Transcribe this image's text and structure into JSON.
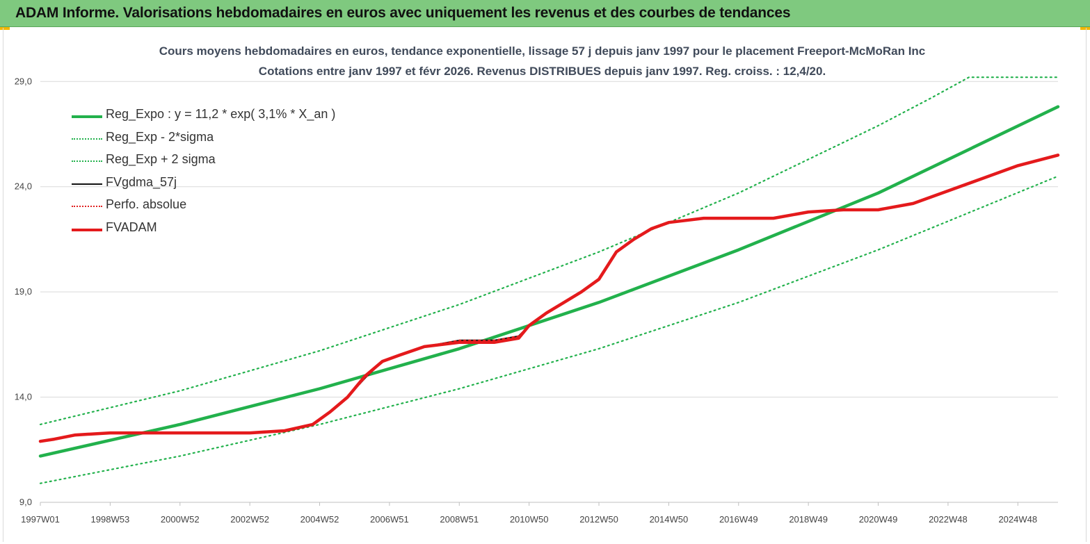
{
  "header": {
    "title": "ADAM Informe. Valorisations hebdomadaires en euros avec uniquement les revenus et des courbes de tendances"
  },
  "chart_data": {
    "type": "line",
    "title": "Cours moyens hebdomadaires en euros, tendance exponentielle, lissage 57 j depuis janv 1997 pour le placement Freeport-McMoRan Inc",
    "subtitle": "Cotations entre janv 1997 et févr 2026. Revenus DISTRIBUES depuis janv 1997. Reg. croiss. : 12,4/20.",
    "x_tick_labels": [
      "1997W01",
      "1998W53",
      "2000W52",
      "2002W52",
      "2004W52",
      "2006W51",
      "2008W51",
      "2010W50",
      "2012W50",
      "2014W50",
      "2016W49",
      "2018W49",
      "2020W49",
      "2022W48",
      "2024W48"
    ],
    "x_tick_years": [
      1997.0,
      1999.0,
      2001.0,
      2003.0,
      2005.0,
      2007.0,
      2009.0,
      2011.0,
      2013.0,
      2015.0,
      2017.0,
      2019.0,
      2021.0,
      2023.0,
      2025.0
    ],
    "x_range": [
      1997.0,
      2026.15
    ],
    "y_ticks": [
      "9,0",
      "14,0",
      "19,0",
      "24,0",
      "29,0"
    ],
    "y_tick_values": [
      9.0,
      14.0,
      19.0,
      24.0,
      29.0
    ],
    "ylim": [
      9.0,
      30.0
    ],
    "grid": true,
    "legend_position": "top-left",
    "series": [
      {
        "name": "Reg_Expo : y = 11,2 * exp( 3,1% *  X_an )",
        "color": "#22b14c",
        "style": "solid-thick",
        "x": [
          1997.0,
          2001.0,
          2005.0,
          2009.0,
          2013.0,
          2017.0,
          2021.0,
          2026.15
        ],
        "y": [
          11.2,
          12.7,
          14.4,
          16.3,
          18.5,
          21.0,
          23.7,
          27.8
        ]
      },
      {
        "name": "Reg_Exp - 2*sigma",
        "color": "#22b14c",
        "style": "dotted",
        "x": [
          1997.0,
          2001.0,
          2005.0,
          2009.0,
          2013.0,
          2017.0,
          2021.0,
          2026.15
        ],
        "y": [
          9.9,
          11.2,
          12.7,
          14.4,
          16.3,
          18.5,
          21.0,
          24.5
        ]
      },
      {
        "name": "Reg_Exp + 2 sigma",
        "color": "#22b14c",
        "style": "dotted",
        "x": [
          1997.0,
          2001.0,
          2005.0,
          2009.0,
          2013.0,
          2017.0,
          2021.0,
          2022.5,
          2023.6,
          2026.15
        ],
        "y": [
          12.7,
          14.3,
          16.2,
          18.4,
          20.9,
          23.7,
          26.9,
          28.2,
          29.2,
          29.2
        ]
      },
      {
        "name": "FVgdma_57j",
        "color": "#111111",
        "style": "solid",
        "x": [
          1997.0,
          1997.4,
          1998.0,
          1999.0,
          2000.0,
          2001.5,
          2003.0,
          2004.0,
          2004.8,
          2005.3,
          2005.8,
          2006.3,
          2006.8,
          2007.3,
          2008.0,
          2009.0,
          2010.0,
          2010.7,
          2011.0,
          2011.5,
          2012.0,
          2012.5,
          2013.0,
          2013.5,
          2014.0,
          2014.5,
          2015.0,
          2015.5,
          2016.0,
          2018.0,
          2019.0,
          2020.0,
          2021.0,
          2022.0,
          2023.0,
          2024.0,
          2025.0,
          2026.15
        ],
        "y": [
          11.9,
          12.0,
          12.2,
          12.3,
          12.3,
          12.3,
          12.3,
          12.4,
          12.7,
          13.3,
          14.0,
          14.9,
          15.7,
          16.0,
          16.4,
          16.7,
          16.7,
          16.9,
          17.4,
          18.0,
          18.5,
          19.0,
          19.6,
          20.9,
          21.5,
          22.0,
          22.3,
          22.4,
          22.5,
          22.5,
          22.8,
          22.9,
          22.9,
          23.2,
          23.8,
          24.4,
          25.0,
          25.5
        ]
      },
      {
        "name": "Perfo. absolue",
        "color": "#e02020",
        "style": "dotted",
        "x": [
          1997.0,
          1997.4,
          1998.0,
          1999.0,
          2000.0,
          2001.5,
          2003.0,
          2004.0,
          2004.8,
          2005.3,
          2005.8,
          2006.3,
          2006.8,
          2007.3,
          2008.0,
          2009.0,
          2010.0,
          2010.7,
          2011.0,
          2011.5,
          2012.0,
          2012.5,
          2013.0,
          2013.5,
          2014.0,
          2014.5,
          2015.0,
          2015.5,
          2016.0,
          2018.0,
          2019.0,
          2020.0,
          2021.0,
          2022.0,
          2023.0,
          2024.0,
          2025.0,
          2026.15
        ],
        "y": [
          11.9,
          12.0,
          12.2,
          12.3,
          12.3,
          12.3,
          12.3,
          12.4,
          12.7,
          13.3,
          14.0,
          14.9,
          15.7,
          16.0,
          16.4,
          16.7,
          16.7,
          16.9,
          17.4,
          18.0,
          18.5,
          19.0,
          19.6,
          20.9,
          21.5,
          22.0,
          22.3,
          22.4,
          22.5,
          22.5,
          22.8,
          22.9,
          22.9,
          23.2,
          23.8,
          24.4,
          25.0,
          25.5
        ]
      },
      {
        "name": "FVADAM",
        "color": "#e41a1c",
        "style": "solid-thick",
        "x": [
          1997.0,
          1997.4,
          1998.0,
          1999.0,
          2000.0,
          2001.5,
          2003.0,
          2004.0,
          2004.8,
          2005.3,
          2005.8,
          2006.3,
          2006.8,
          2007.3,
          2008.0,
          2009.0,
          2010.0,
          2010.7,
          2011.0,
          2011.5,
          2012.0,
          2012.5,
          2013.0,
          2013.5,
          2014.0,
          2014.5,
          2015.0,
          2015.5,
          2016.0,
          2018.0,
          2019.0,
          2020.0,
          2021.0,
          2022.0,
          2023.0,
          2024.0,
          2025.0,
          2026.15
        ],
        "y": [
          11.9,
          12.0,
          12.2,
          12.3,
          12.3,
          12.3,
          12.3,
          12.4,
          12.7,
          13.3,
          14.0,
          15.0,
          15.7,
          16.0,
          16.4,
          16.6,
          16.6,
          16.8,
          17.4,
          18.0,
          18.5,
          19.0,
          19.6,
          20.9,
          21.5,
          22.0,
          22.3,
          22.4,
          22.5,
          22.5,
          22.8,
          22.9,
          22.9,
          23.2,
          23.8,
          24.4,
          25.0,
          25.5
        ]
      }
    ]
  }
}
